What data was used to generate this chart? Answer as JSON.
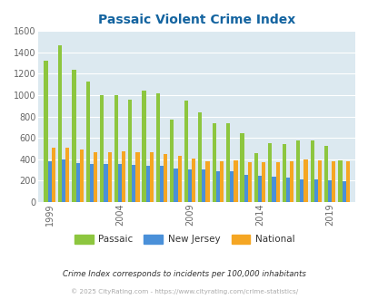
{
  "title": "Passaic Violent Crime Index",
  "years": [
    1999,
    2000,
    2001,
    2002,
    2003,
    2004,
    2005,
    2006,
    2007,
    2008,
    2009,
    2010,
    2011,
    2012,
    2013,
    2014,
    2015,
    2016,
    2017,
    2018,
    2019,
    2020
  ],
  "passaic": [
    1320,
    1470,
    1240,
    1130,
    1000,
    1000,
    960,
    1040,
    1015,
    775,
    950,
    840,
    740,
    740,
    645,
    460,
    555,
    545,
    580,
    575,
    525,
    390
  ],
  "new_jersey": [
    380,
    400,
    365,
    355,
    355,
    355,
    350,
    340,
    335,
    310,
    305,
    305,
    285,
    285,
    255,
    250,
    240,
    230,
    210,
    210,
    205,
    195
  ],
  "national": [
    505,
    505,
    490,
    465,
    465,
    475,
    465,
    470,
    450,
    435,
    405,
    385,
    385,
    390,
    370,
    375,
    375,
    385,
    395,
    390,
    385,
    380
  ],
  "passaic_color": "#8dc63f",
  "nj_color": "#4a90d9",
  "national_color": "#f5a623",
  "plot_bg": "#dce9f0",
  "title_color": "#1464a0",
  "yticks": [
    0,
    200,
    400,
    600,
    800,
    1000,
    1200,
    1400,
    1600
  ],
  "xtick_years": [
    1999,
    2004,
    2009,
    2014,
    2019
  ],
  "footnote1": "Crime Index corresponds to incidents per 100,000 inhabitants",
  "footnote2": "© 2025 CityRating.com - https://www.cityrating.com/crime-statistics/"
}
